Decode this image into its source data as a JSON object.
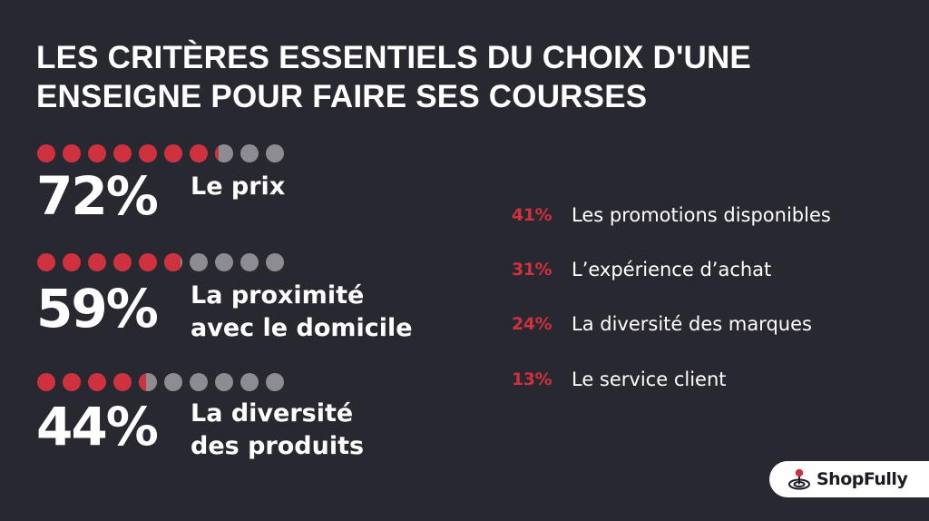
{
  "title": "LES CRITÈRES ESSENTIELS DU CHOIX D'UNE ENSEIGNE POUR FAIRE SES COURSES",
  "colors": {
    "background": "#282830",
    "accent": "#d0313f",
    "dot_inactive": "#8c8c92",
    "text": "#ffffff"
  },
  "chart_data": {
    "type": "bar",
    "title": "LES CRITÈRES ESSENTIELS DU CHOIX D'UNE ENSEIGNE POUR FAIRE SES COURSES",
    "dots_per_item": 10,
    "categories": [
      "Le prix",
      "La proximité avec le domicile",
      "La diversité des produits",
      "Les promotions disponibles",
      "L’expérience d’achat",
      "La diversité des marques",
      "Le service client"
    ],
    "values": [
      72,
      59,
      44,
      41,
      31,
      24,
      13
    ],
    "unit": "%",
    "top_items": [
      {
        "pct": "72%",
        "value": 72,
        "label_lines": [
          "Le prix"
        ]
      },
      {
        "pct": "59%",
        "value": 59,
        "label_lines": [
          "La proximité",
          "avec le domicile"
        ]
      },
      {
        "pct": "44%",
        "value": 44,
        "label_lines": [
          "La diversité",
          "des produits"
        ]
      }
    ],
    "other_items": [
      {
        "pct": "41%",
        "value": 41,
        "label": "Les promotions disponibles"
      },
      {
        "pct": "31%",
        "value": 31,
        "label": "L’expérience d’achat"
      },
      {
        "pct": "24%",
        "value": 24,
        "label": "La diversité des marques"
      },
      {
        "pct": "13%",
        "value": 13,
        "label": "Le service client"
      }
    ]
  },
  "brand": {
    "name": "ShopFully",
    "icon": "target-pin-icon"
  }
}
